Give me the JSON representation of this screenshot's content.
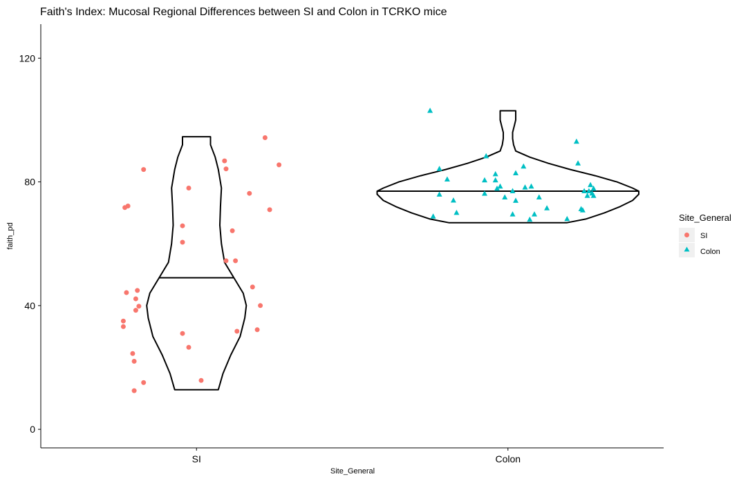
{
  "chart_data": {
    "type": "violin",
    "title": "Faith's Index: Mucosal Regional Differences between SI and Colon in TCRKO mice",
    "xlabel": "Site_General",
    "ylabel": "faith_pd",
    "ylim": [
      -6,
      131
    ],
    "yticks": [
      0,
      40,
      80,
      120
    ],
    "categories": [
      "SI",
      "Colon"
    ],
    "legend": {
      "title": "Site_General",
      "entries": [
        {
          "label": "SI",
          "shape": "circle",
          "color": "#F8766D"
        },
        {
          "label": "Colon",
          "shape": "triangle",
          "color": "#00BFC4"
        }
      ]
    },
    "violins": [
      {
        "category": "SI",
        "median": 49,
        "profile": [
          [
            12.8,
            0.07
          ],
          [
            18,
            0.085
          ],
          [
            24,
            0.11
          ],
          [
            30,
            0.14
          ],
          [
            36,
            0.155
          ],
          [
            40,
            0.16
          ],
          [
            44,
            0.15
          ],
          [
            49,
            0.12
          ],
          [
            54,
            0.09
          ],
          [
            60,
            0.08
          ],
          [
            66,
            0.075
          ],
          [
            72,
            0.077
          ],
          [
            78,
            0.08
          ],
          [
            84,
            0.07
          ],
          [
            88,
            0.06
          ],
          [
            92,
            0.045
          ],
          [
            94.6,
            0.045
          ]
        ]
      },
      {
        "category": "Colon",
        "median": 77,
        "profile": [
          [
            66.8,
            0.19
          ],
          [
            68,
            0.25
          ],
          [
            70,
            0.31
          ],
          [
            72,
            0.36
          ],
          [
            74,
            0.4
          ],
          [
            76,
            0.42
          ],
          [
            77,
            0.42
          ],
          [
            78,
            0.4
          ],
          [
            80,
            0.35
          ],
          [
            82,
            0.28
          ],
          [
            84,
            0.2
          ],
          [
            86,
            0.13
          ],
          [
            88,
            0.07
          ],
          [
            90,
            0.025
          ],
          [
            92,
            0.018
          ],
          [
            94,
            0.015
          ],
          [
            96,
            0.015
          ],
          [
            98,
            0.02
          ],
          [
            100,
            0.025
          ],
          [
            102,
            0.025
          ],
          [
            103,
            0.025
          ]
        ]
      }
    ],
    "series": [
      {
        "name": "SI",
        "points": [
          [
            -0.46,
            71.7
          ],
          [
            -0.44,
            72.2
          ],
          [
            -0.45,
            44.2
          ],
          [
            -0.47,
            35.0
          ],
          [
            -0.47,
            33.2
          ],
          [
            -0.37,
            39.8
          ],
          [
            -0.39,
            38.5
          ],
          [
            -0.39,
            42.2
          ],
          [
            -0.38,
            44.9
          ],
          [
            -0.34,
            84.0
          ],
          [
            -0.34,
            15.1
          ],
          [
            -0.41,
            24.5
          ],
          [
            -0.4,
            22.0
          ],
          [
            -0.4,
            12.5
          ],
          [
            -0.05,
            78.0
          ],
          [
            -0.05,
            26.5
          ],
          [
            -0.09,
            31.0
          ],
          [
            -0.09,
            65.8
          ],
          [
            -0.09,
            60.5
          ],
          [
            0.03,
            15.8
          ],
          [
            0.19,
            84.2
          ],
          [
            0.18,
            86.8
          ],
          [
            0.23,
            64.2
          ],
          [
            0.25,
            54.5
          ],
          [
            0.19,
            54.5
          ],
          [
            0.34,
            76.3
          ],
          [
            0.36,
            46.0
          ],
          [
            0.44,
            94.3
          ],
          [
            0.53,
            85.5
          ],
          [
            0.47,
            71.0
          ],
          [
            0.41,
            40.0
          ],
          [
            0.39,
            32.2
          ],
          [
            0.26,
            31.7
          ]
        ]
      },
      {
        "name": "Colon",
        "points": [
          [
            -0.5,
            103.0
          ],
          [
            -0.44,
            84.2
          ],
          [
            -0.39,
            80.8
          ],
          [
            -0.44,
            75.9
          ],
          [
            -0.35,
            74.0
          ],
          [
            -0.33,
            70.0
          ],
          [
            -0.48,
            68.8
          ],
          [
            -0.14,
            88.3
          ],
          [
            -0.08,
            82.5
          ],
          [
            -0.08,
            80.5
          ],
          [
            -0.05,
            78.5
          ],
          [
            -0.15,
            80.5
          ],
          [
            -0.15,
            76.2
          ],
          [
            -0.02,
            75.0
          ],
          [
            0.03,
            77.0
          ],
          [
            0.05,
            82.8
          ],
          [
            0.1,
            85.0
          ],
          [
            0.11,
            78.2
          ],
          [
            0.15,
            78.5
          ],
          [
            0.2,
            75.0
          ],
          [
            0.05,
            73.9
          ],
          [
            0.03,
            69.5
          ],
          [
            0.14,
            67.8
          ],
          [
            0.17,
            69.5
          ],
          [
            0.25,
            71.5
          ],
          [
            0.38,
            68.0
          ],
          [
            0.45,
            86.0
          ],
          [
            0.44,
            93.0
          ],
          [
            0.53,
            79.0
          ],
          [
            0.52,
            77.0
          ],
          [
            0.55,
            75.5
          ],
          [
            0.54,
            76.3
          ],
          [
            0.47,
            71.2
          ],
          [
            0.48,
            70.8
          ],
          [
            0.51,
            75.5
          ],
          [
            0.55,
            77.8
          ],
          [
            0.49,
            77.0
          ],
          [
            -0.07,
            77.8
          ]
        ]
      }
    ]
  }
}
